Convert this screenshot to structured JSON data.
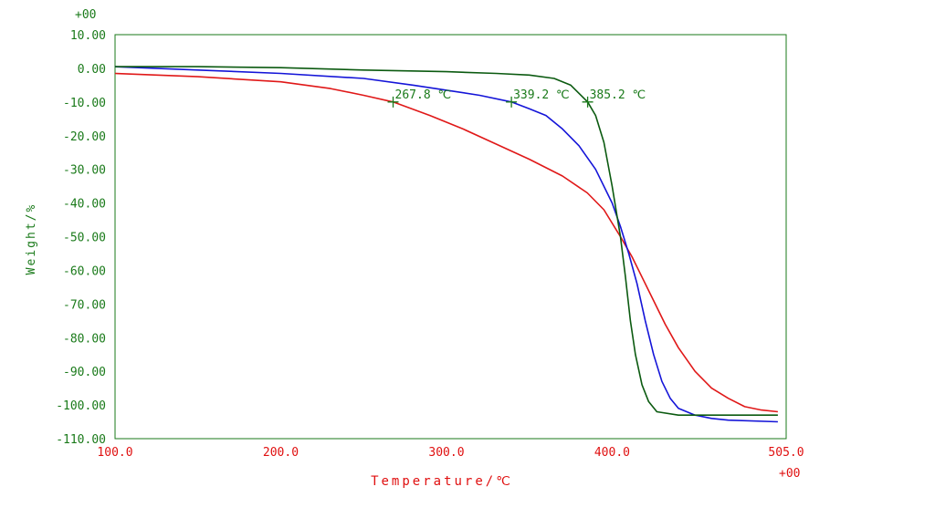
{
  "chart_data": {
    "type": "line",
    "xlabel": "Temperature/℃",
    "ylabel": "Weight/%",
    "x_exponent_label": "+00",
    "y_exponent_label": "+00",
    "xlim": [
      100,
      505
    ],
    "ylim": [
      -110,
      10
    ],
    "x_ticks": [
      {
        "value": 100,
        "label": "100.0"
      },
      {
        "value": 200,
        "label": "200.0"
      },
      {
        "value": 300,
        "label": "300.0"
      },
      {
        "value": 400,
        "label": "400.0"
      },
      {
        "value": 505,
        "label": "505.0"
      }
    ],
    "y_ticks": [
      {
        "value": 10,
        "label": "10.00"
      },
      {
        "value": 0,
        "label": "0.00"
      },
      {
        "value": -10,
        "label": "-10.00"
      },
      {
        "value": -20,
        "label": "-20.00"
      },
      {
        "value": -30,
        "label": "-30.00"
      },
      {
        "value": -40,
        "label": "-40.00"
      },
      {
        "value": -50,
        "label": "-50.00"
      },
      {
        "value": -60,
        "label": "-60.00"
      },
      {
        "value": -70,
        "label": "-70.00"
      },
      {
        "value": -80,
        "label": "-80.00"
      },
      {
        "value": -90,
        "label": "-90.00"
      },
      {
        "value": -100,
        "label": "-100.00"
      },
      {
        "value": -110,
        "label": "-110.00"
      }
    ],
    "grid": false,
    "colors": {
      "axis_text_y": "#1a7a1a",
      "axis_text_x": "#e01010",
      "annotation": "#1a7a1a",
      "frame": "#1a7a1a"
    },
    "series": [
      {
        "color": "#e01818",
        "points": [
          [
            100,
            -1.5
          ],
          [
            150,
            -2.5
          ],
          [
            200,
            -4
          ],
          [
            230,
            -6
          ],
          [
            250,
            -8
          ],
          [
            267.8,
            -10
          ],
          [
            290,
            -14
          ],
          [
            310,
            -18
          ],
          [
            330,
            -22.5
          ],
          [
            350,
            -27
          ],
          [
            370,
            -32
          ],
          [
            385,
            -37
          ],
          [
            395,
            -42
          ],
          [
            405,
            -50
          ],
          [
            412,
            -56
          ],
          [
            418,
            -62
          ],
          [
            425,
            -69
          ],
          [
            432,
            -76
          ],
          [
            440,
            -83
          ],
          [
            450,
            -90
          ],
          [
            460,
            -95
          ],
          [
            470,
            -98
          ],
          [
            480,
            -100.5
          ],
          [
            490,
            -101.5
          ],
          [
            500,
            -102
          ]
        ]
      },
      {
        "color": "#1414d8",
        "points": [
          [
            100,
            0.5
          ],
          [
            150,
            -0.5
          ],
          [
            200,
            -1.5
          ],
          [
            250,
            -3
          ],
          [
            280,
            -5
          ],
          [
            300,
            -6.5
          ],
          [
            320,
            -8
          ],
          [
            339.2,
            -10
          ],
          [
            350,
            -12
          ],
          [
            360,
            -14
          ],
          [
            370,
            -18
          ],
          [
            380,
            -23
          ],
          [
            390,
            -30
          ],
          [
            400,
            -40
          ],
          [
            405,
            -47
          ],
          [
            410,
            -55
          ],
          [
            415,
            -64
          ],
          [
            420,
            -75
          ],
          [
            425,
            -85
          ],
          [
            430,
            -93
          ],
          [
            435,
            -98
          ],
          [
            440,
            -101
          ],
          [
            450,
            -103
          ],
          [
            460,
            -104
          ],
          [
            470,
            -104.5
          ],
          [
            500,
            -105
          ]
        ]
      },
      {
        "color": "#0b5a10",
        "points": [
          [
            100,
            0.5
          ],
          [
            150,
            0.5
          ],
          [
            200,
            0.2
          ],
          [
            250,
            -0.5
          ],
          [
            300,
            -1
          ],
          [
            330,
            -1.5
          ],
          [
            350,
            -2
          ],
          [
            365,
            -3
          ],
          [
            375,
            -5
          ],
          [
            385.2,
            -10
          ],
          [
            390,
            -14
          ],
          [
            395,
            -22
          ],
          [
            400,
            -35
          ],
          [
            405,
            -50
          ],
          [
            408,
            -62
          ],
          [
            411,
            -75
          ],
          [
            414,
            -85
          ],
          [
            418,
            -94
          ],
          [
            422,
            -99
          ],
          [
            427,
            -102
          ],
          [
            440,
            -103
          ],
          [
            500,
            -103
          ]
        ]
      }
    ],
    "annotations": [
      {
        "text": "267.8 ℃",
        "x": 267.8,
        "y": -10
      },
      {
        "text": "339.2 ℃",
        "x": 339.2,
        "y": -10
      },
      {
        "text": "385.2 ℃",
        "x": 385.2,
        "y": -10
      }
    ]
  }
}
